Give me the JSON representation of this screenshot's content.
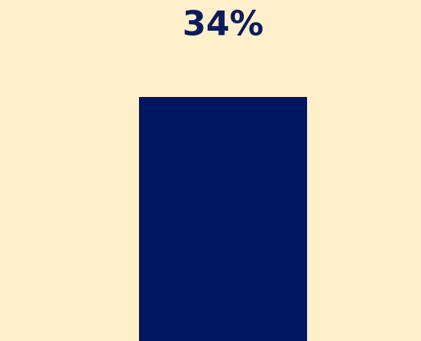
{
  "chart_data": {
    "type": "bar",
    "categories": [
      null
    ],
    "values": [
      34
    ],
    "value_labels": [
      "34%"
    ],
    "color": "#001660"
  }
}
